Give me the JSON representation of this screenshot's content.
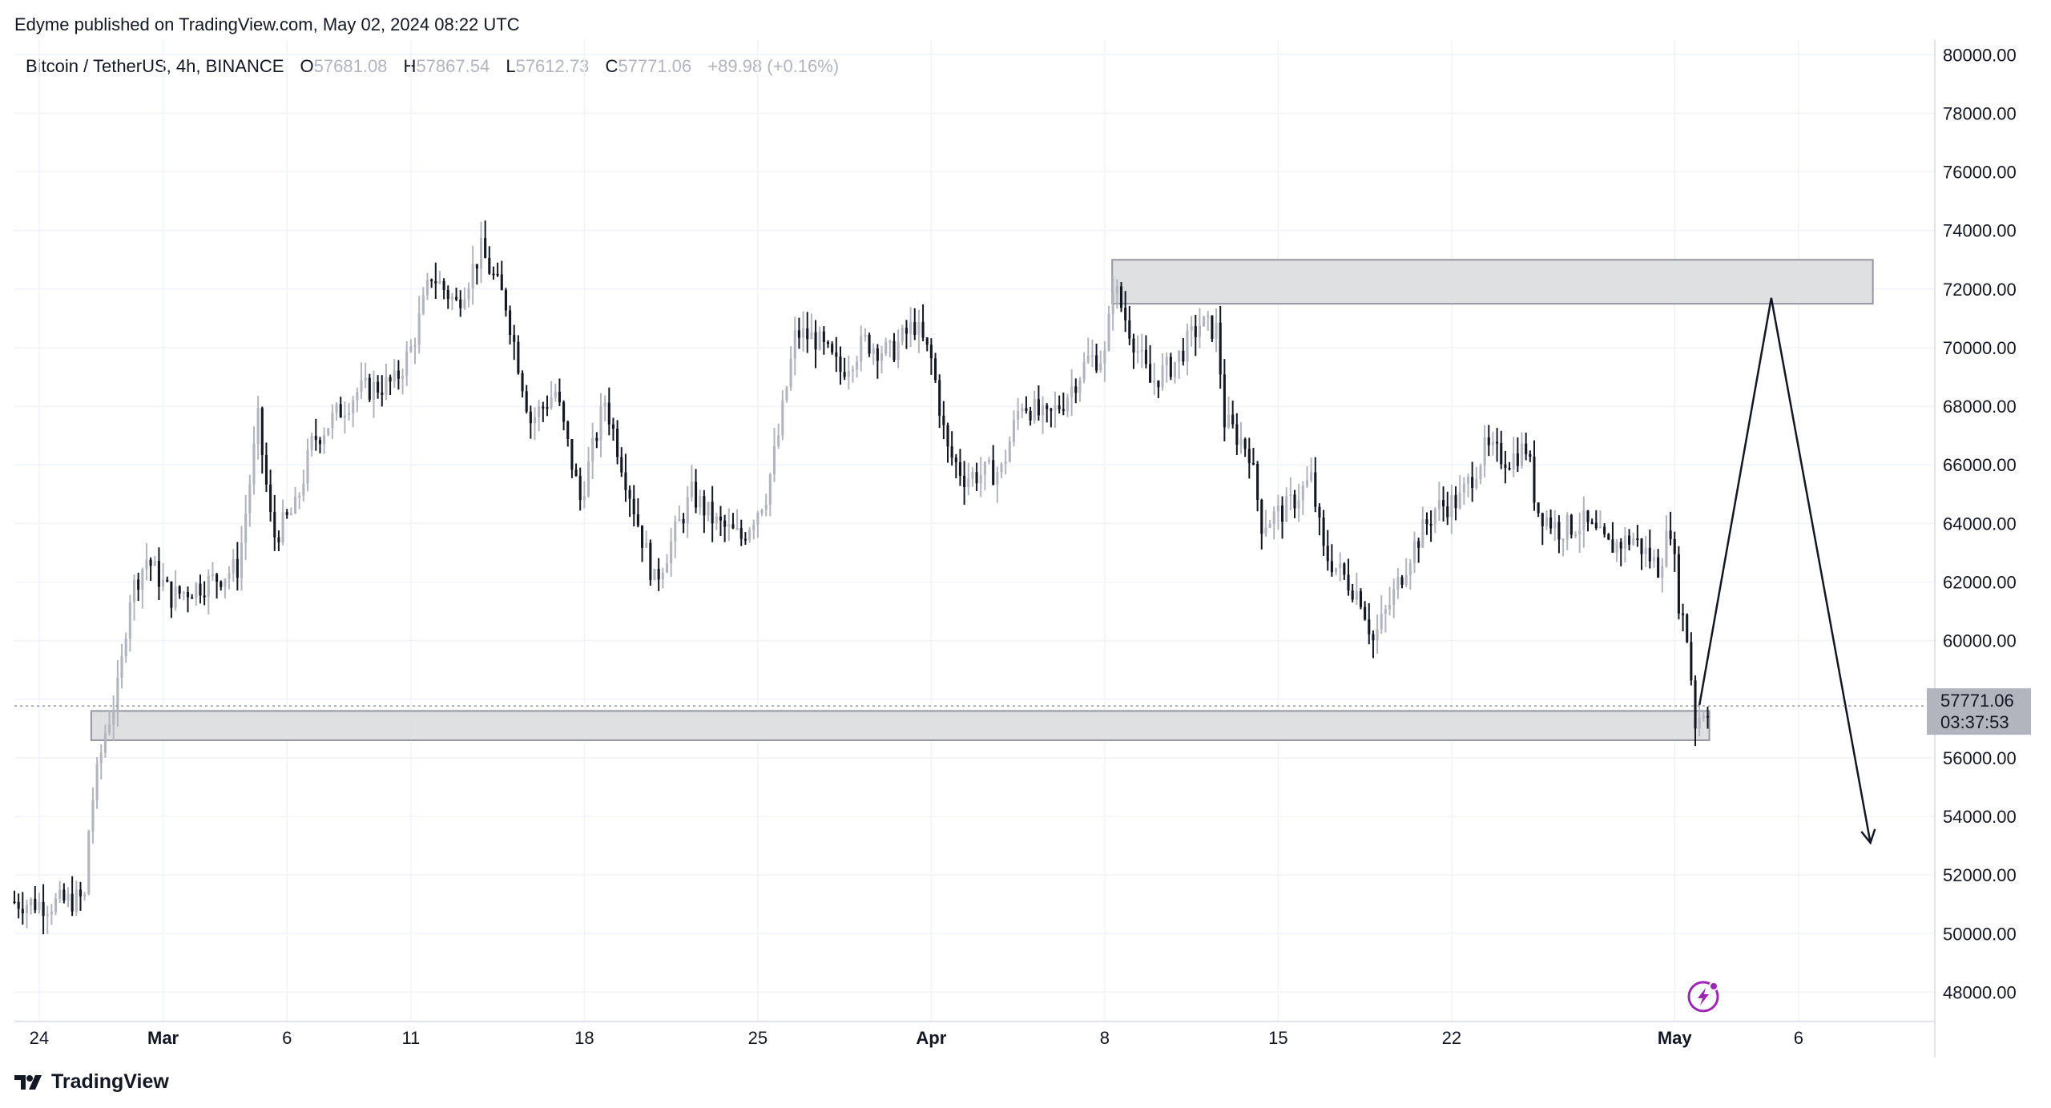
{
  "header": {
    "published": "Edyme published on TradingView.com, May 02, 2024 08:22 UTC"
  },
  "legend": {
    "symbol": "Bitcoin / TetherUS, 4h, BINANCE",
    "o_label": "O",
    "o_value": "57681.08",
    "h_label": "H",
    "h_value": "57867.54",
    "l_label": "L",
    "l_value": "57612.73",
    "c_label": "C",
    "c_value": "57771.06",
    "change": "+89.98 (+0.16%)"
  },
  "price_tag": {
    "price": "57771.06",
    "countdown": "03:37:53"
  },
  "footer": {
    "brand": "TradingView"
  },
  "colors": {
    "bull": "#b2b5be",
    "bear": "#131722",
    "zone_fill": "#d9dadd",
    "zone_stroke": "#9598a1",
    "grid": "#f0f3fa",
    "accent": "#9c27b0"
  },
  "chart_data": {
    "type": "candlestick",
    "interval": "4h",
    "y_ticks": [
      "80000.00",
      "78000.00",
      "76000.00",
      "74000.00",
      "72000.00",
      "70000.00",
      "68000.00",
      "66000.00",
      "64000.00",
      "62000.00",
      "60000.00",
      "58000.00",
      "56000.00",
      "54000.00",
      "52000.00",
      "50000.00",
      "48000.00"
    ],
    "x_ticks": [
      {
        "label": "24",
        "day": -5,
        "bold": false
      },
      {
        "label": "Mar",
        "day": 0,
        "bold": true
      },
      {
        "label": "6",
        "day": 5,
        "bold": false
      },
      {
        "label": "11",
        "day": 10,
        "bold": false
      },
      {
        "label": "18",
        "day": 17,
        "bold": false
      },
      {
        "label": "25",
        "day": 24,
        "bold": false
      },
      {
        "label": "Apr",
        "day": 31,
        "bold": true
      },
      {
        "label": "8",
        "day": 38,
        "bold": false
      },
      {
        "label": "15",
        "day": 45,
        "bold": false
      },
      {
        "label": "22",
        "day": 52,
        "bold": false
      },
      {
        "label": "May",
        "day": 61,
        "bold": true
      },
      {
        "label": "6",
        "day": 66,
        "bold": false
      }
    ],
    "ylim": [
      47000,
      80500
    ],
    "xlim": [
      -6,
      71.5
    ],
    "last_price": 57771.06,
    "zones": [
      {
        "name": "resistance",
        "day_start": 38.3,
        "day_end": 69.0,
        "low": 71500,
        "high": 73000
      },
      {
        "name": "support",
        "day_start": -2.9,
        "day_end": 62.4,
        "low": 56600,
        "high": 57600
      }
    ],
    "projection": [
      {
        "day": 62.0,
        "price": 57800
      },
      {
        "day": 64.9,
        "price": 71700
      },
      {
        "day": 68.9,
        "price": 53100
      }
    ],
    "anchors": [
      {
        "day": -6,
        "price": 51100
      },
      {
        "day": -4.5,
        "price": 51000
      },
      {
        "day": -3.0,
        "price": 51200
      },
      {
        "day": -2.8,
        "price": 54000
      },
      {
        "day": -2.2,
        "price": 56800
      },
      {
        "day": -1.6,
        "price": 58500
      },
      {
        "day": -1.2,
        "price": 61500
      },
      {
        "day": -0.5,
        "price": 62800
      },
      {
        "day": 0.5,
        "price": 61500
      },
      {
        "day": 2.0,
        "price": 62000
      },
      {
        "day": 3.2,
        "price": 62500
      },
      {
        "day": 4.0,
        "price": 67500
      },
      {
        "day": 4.6,
        "price": 63500
      },
      {
        "day": 5.5,
        "price": 64500
      },
      {
        "day": 6.2,
        "price": 66800
      },
      {
        "day": 8.0,
        "price": 68500
      },
      {
        "day": 9.5,
        "price": 68800
      },
      {
        "day": 10.2,
        "price": 70000
      },
      {
        "day": 11.0,
        "price": 72500
      },
      {
        "day": 12.0,
        "price": 71500
      },
      {
        "day": 13.0,
        "price": 73300
      },
      {
        "day": 14.0,
        "price": 71500
      },
      {
        "day": 15.0,
        "price": 67500
      },
      {
        "day": 16.0,
        "price": 68500
      },
      {
        "day": 17.0,
        "price": 64800
      },
      {
        "day": 18.0,
        "price": 68200
      },
      {
        "day": 19.5,
        "price": 63500
      },
      {
        "day": 20.0,
        "price": 62000
      },
      {
        "day": 21.5,
        "price": 65000
      },
      {
        "day": 22.5,
        "price": 64000
      },
      {
        "day": 23.5,
        "price": 63500
      },
      {
        "day": 24.5,
        "price": 65000
      },
      {
        "day": 25.0,
        "price": 67000
      },
      {
        "day": 25.7,
        "price": 70500
      },
      {
        "day": 26.5,
        "price": 70300
      },
      {
        "day": 27.5,
        "price": 69200
      },
      {
        "day": 28.5,
        "price": 70200
      },
      {
        "day": 29.5,
        "price": 69800
      },
      {
        "day": 30.5,
        "price": 70800
      },
      {
        "day": 31.2,
        "price": 69500
      },
      {
        "day": 31.8,
        "price": 66500
      },
      {
        "day": 32.5,
        "price": 65600
      },
      {
        "day": 34.0,
        "price": 65800
      },
      {
        "day": 34.8,
        "price": 68200
      },
      {
        "day": 35.8,
        "price": 67500
      },
      {
        "day": 36.5,
        "price": 68200
      },
      {
        "day": 37.5,
        "price": 69600
      },
      {
        "day": 38.2,
        "price": 69700
      },
      {
        "day": 38.5,
        "price": 72200
      },
      {
        "day": 39.0,
        "price": 71000
      },
      {
        "day": 40.0,
        "price": 68800
      },
      {
        "day": 41.0,
        "price": 69500
      },
      {
        "day": 42.0,
        "price": 70800
      },
      {
        "day": 42.7,
        "price": 70600
      },
      {
        "day": 43.0,
        "price": 67500
      },
      {
        "day": 44.0,
        "price": 66500
      },
      {
        "day": 44.5,
        "price": 64000
      },
      {
        "day": 45.5,
        "price": 64500
      },
      {
        "day": 46.5,
        "price": 65500
      },
      {
        "day": 47.0,
        "price": 63000
      },
      {
        "day": 48.5,
        "price": 61500
      },
      {
        "day": 49.0,
        "price": 60000
      },
      {
        "day": 49.8,
        "price": 61500
      },
      {
        "day": 50.5,
        "price": 63000
      },
      {
        "day": 51.5,
        "price": 64500
      },
      {
        "day": 52.5,
        "price": 64800
      },
      {
        "day": 53.5,
        "price": 66500
      },
      {
        "day": 54.5,
        "price": 66200
      },
      {
        "day": 55.2,
        "price": 66600
      },
      {
        "day": 55.6,
        "price": 64500
      },
      {
        "day": 56.5,
        "price": 63800
      },
      {
        "day": 57.5,
        "price": 64000
      },
      {
        "day": 58.5,
        "price": 63200
      },
      {
        "day": 59.5,
        "price": 63500
      },
      {
        "day": 60.5,
        "price": 62500
      },
      {
        "day": 61.0,
        "price": 63900
      },
      {
        "day": 61.3,
        "price": 61500
      },
      {
        "day": 61.7,
        "price": 60000
      },
      {
        "day": 62.0,
        "price": 57200
      },
      {
        "day": 62.4,
        "price": 57771
      }
    ]
  }
}
